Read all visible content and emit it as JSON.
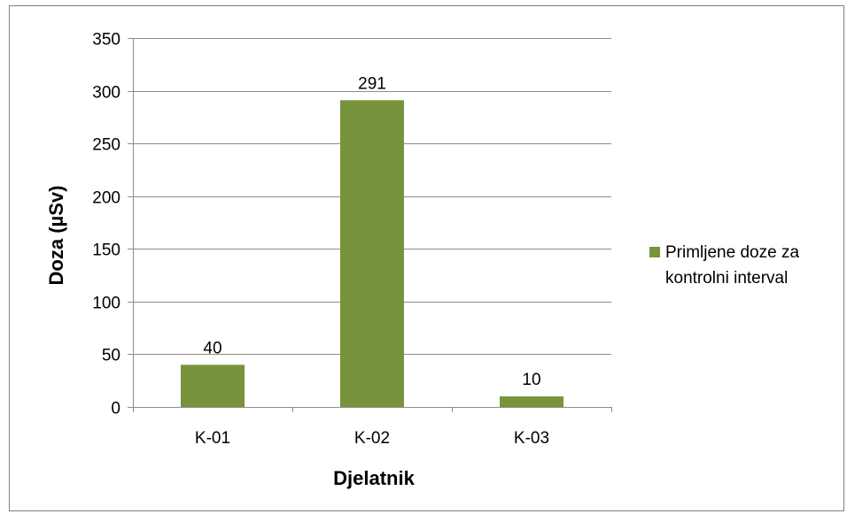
{
  "chart_data": {
    "type": "bar",
    "categories": [
      "K-01",
      "K-02",
      "K-03"
    ],
    "series": [
      {
        "name": "Primljene doze za kontrolni interval",
        "name_lines": [
          "Primljene doze za",
          "kontrolni interval"
        ],
        "values": [
          40,
          291,
          10
        ],
        "color": "#77933c"
      }
    ],
    "data_labels": [
      "40",
      "291",
      "10"
    ],
    "xlabel": "Djelatnik",
    "ylabel": "Doza  (µSv)",
    "ylim": [
      0,
      350
    ],
    "yticks": [
      0,
      50,
      100,
      150,
      200,
      250,
      300,
      350
    ],
    "grid": true,
    "legend_position": "right"
  }
}
